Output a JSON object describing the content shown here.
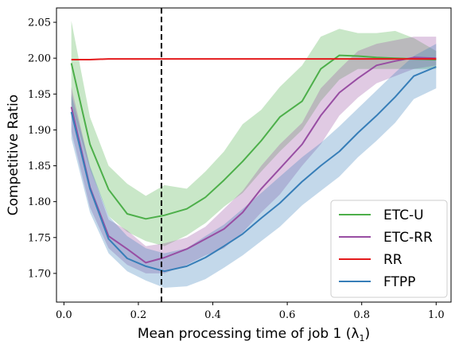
{
  "chart_data": {
    "type": "line",
    "xlabel": "Mean processing time of job 1 (λ",
    "xlabel_sub": "1",
    "xlabel_close": ")",
    "ylabel": "Competitive Ratio",
    "xlim": [
      -0.02,
      1.04
    ],
    "ylim": [
      1.66,
      2.07
    ],
    "xticks": [
      0.0,
      0.2,
      0.4,
      0.6,
      0.8,
      1.0
    ],
    "xtick_labels": [
      "0.0",
      "0.2",
      "0.4",
      "0.6",
      "0.8",
      "1.0"
    ],
    "yticks": [
      1.7,
      1.75,
      1.8,
      1.85,
      1.9,
      1.95,
      2.0,
      2.05
    ],
    "ytick_labels": [
      "1.70",
      "1.75",
      "1.80",
      "1.85",
      "1.90",
      "1.95",
      "2.00",
      "2.05"
    ],
    "vline_x": 0.262,
    "legend_position": "bottom-right",
    "grid": false,
    "x": [
      0.02,
      0.07,
      0.12,
      0.17,
      0.22,
      0.27,
      0.33,
      0.38,
      0.43,
      0.48,
      0.53,
      0.58,
      0.64,
      0.69,
      0.74,
      0.79,
      0.84,
      0.89,
      0.94,
      1.0
    ],
    "series": [
      {
        "name": "ETC-U",
        "color": "#4daf4a",
        "values": [
          1.993,
          1.88,
          1.817,
          1.783,
          1.776,
          1.781,
          1.79,
          1.806,
          1.83,
          1.856,
          1.885,
          1.918,
          1.94,
          1.985,
          2.004,
          2.003,
          2.001,
          2.0,
          1.999,
          1.998
        ],
        "lower": [
          1.935,
          1.845,
          1.78,
          1.758,
          1.745,
          1.738,
          1.753,
          1.77,
          1.793,
          1.812,
          1.842,
          1.87,
          1.9,
          1.94,
          1.97,
          1.985,
          1.985,
          1.985,
          1.985,
          1.985
        ],
        "upper": [
          2.052,
          1.918,
          1.85,
          1.825,
          1.808,
          1.823,
          1.818,
          1.842,
          1.87,
          1.908,
          1.928,
          1.96,
          1.99,
          2.03,
          2.041,
          2.035,
          2.035,
          2.038,
          2.028,
          2.01
        ]
      },
      {
        "name": "ETC-RR",
        "color": "#984ea3",
        "values": [
          1.932,
          1.82,
          1.752,
          1.734,
          1.715,
          1.722,
          1.734,
          1.748,
          1.762,
          1.785,
          1.818,
          1.846,
          1.88,
          1.92,
          1.952,
          1.972,
          1.99,
          1.996,
          2.001,
          2.0
        ],
        "lower": [
          1.898,
          1.792,
          1.735,
          1.712,
          1.7,
          1.7,
          1.712,
          1.725,
          1.735,
          1.757,
          1.785,
          1.81,
          1.85,
          1.88,
          1.92,
          1.945,
          1.965,
          1.975,
          1.985,
          1.99
        ],
        "upper": [
          1.96,
          1.848,
          1.775,
          1.76,
          1.738,
          1.742,
          1.75,
          1.765,
          1.79,
          1.815,
          1.85,
          1.88,
          1.91,
          1.958,
          1.985,
          2.01,
          2.02,
          2.025,
          2.03,
          2.03
        ]
      },
      {
        "name": "RR",
        "color": "#e41a1c",
        "values": [
          1.998,
          1.998,
          1.999,
          1.999,
          1.999,
          1.999,
          1.999,
          1.999,
          1.999,
          1.999,
          1.999,
          1.999,
          1.999,
          1.999,
          1.999,
          1.999,
          1.999,
          1.999,
          1.999,
          1.999
        ],
        "lower": [
          1.998,
          1.998,
          1.999,
          1.999,
          1.999,
          1.999,
          1.999,
          1.999,
          1.999,
          1.999,
          1.999,
          1.999,
          1.999,
          1.999,
          1.999,
          1.999,
          1.999,
          1.999,
          1.999,
          1.999
        ],
        "upper": [
          1.998,
          1.998,
          1.999,
          1.999,
          1.999,
          1.999,
          1.999,
          1.999,
          1.999,
          1.999,
          1.999,
          1.999,
          1.999,
          1.999,
          1.999,
          1.999,
          1.999,
          1.999,
          1.999,
          1.999
        ]
      },
      {
        "name": "FTPP",
        "color": "#377eb8",
        "values": [
          1.925,
          1.818,
          1.748,
          1.721,
          1.71,
          1.703,
          1.71,
          1.722,
          1.738,
          1.755,
          1.777,
          1.798,
          1.828,
          1.85,
          1.87,
          1.896,
          1.92,
          1.946,
          1.975,
          1.988
        ],
        "lower": [
          1.888,
          1.785,
          1.728,
          1.703,
          1.69,
          1.68,
          1.682,
          1.692,
          1.708,
          1.725,
          1.745,
          1.765,
          1.795,
          1.815,
          1.835,
          1.862,
          1.885,
          1.91,
          1.943,
          1.958
        ],
        "upper": [
          1.95,
          1.85,
          1.78,
          1.752,
          1.735,
          1.728,
          1.735,
          1.752,
          1.768,
          1.79,
          1.812,
          1.835,
          1.862,
          1.882,
          1.905,
          1.93,
          1.955,
          1.98,
          2.003,
          2.02
        ]
      }
    ]
  }
}
